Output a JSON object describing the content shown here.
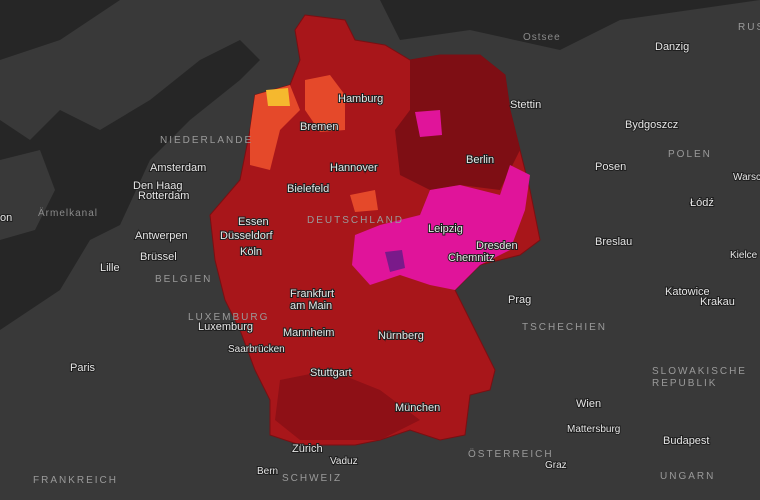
{
  "map": {
    "water": [
      "Ostsee",
      "Ärmelkanal"
    ],
    "countries": [
      "NIEDERLANDE",
      "DEUTSCHLAND",
      "POLEN",
      "BELGIEN",
      "LUXEMBURG",
      "TSCHECHIEN",
      {
        "lines": [
          "SLOWAKISCHE",
          "REPUBLIK"
        ]
      },
      "ÖSTERREICH",
      "SCHWEIZ",
      "FRANKREICH",
      "UNGARN",
      "RUS"
    ],
    "cities": [
      "Hamburg",
      "Danzig",
      "Stettin",
      "Bydgoszcz",
      "Bremen",
      "Amsterdam",
      "Den Haag",
      "Rotterdam",
      "Hannover",
      "Berlin",
      "Posen",
      "Warsc",
      "Bielefeld",
      "Łódź",
      "on",
      "Essen",
      "Leipzig",
      "Düsseldorf",
      "Antwerpen",
      "Dresden",
      "Breslau",
      "Brüssel",
      "Köln",
      "Chemnitz",
      "Kielce",
      "Lille",
      {
        "lines": [
          "Frankfurt",
          "am Main"
        ]
      },
      "Katowice",
      "Krakau",
      "Prag",
      "Luxemburg",
      "Mannheim",
      "Nürnberg",
      "Saarbrücken",
      "Paris",
      "Stuttgart",
      "München",
      "Wien",
      "Mattersburg",
      "Zürich",
      "Budapest",
      "Vaduz",
      "Graz",
      "Bern"
    ]
  }
}
